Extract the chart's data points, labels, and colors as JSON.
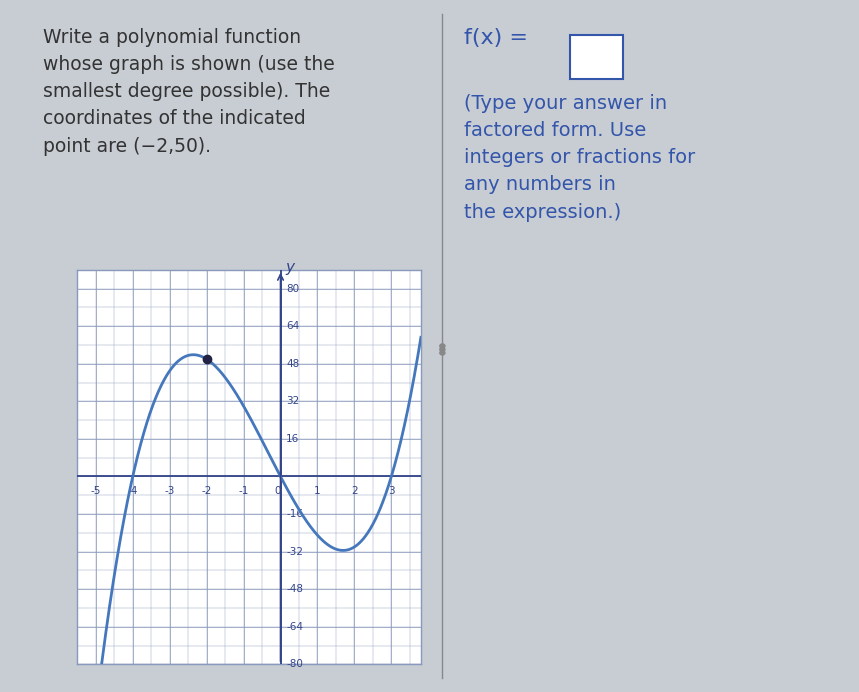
{
  "background_color": "#c8cdd4",
  "right_bg_color": "#d4d8de",
  "left_text_lines": [
    "Write a polynomial function",
    "whose graph is shown (use the",
    "smallest degree possible). The",
    "coordinates of the indicated",
    "point are (−2,50)."
  ],
  "right_text_line1": "f(x) =",
  "right_text_below": "(Type your answer in\nfactored form. Use\nintegers or fractions for\nany numbers in\nthe expression.)",
  "right_text_color": "#3355aa",
  "left_text_color": "#333333",
  "graph": {
    "xlim": [
      -5.5,
      3.8
    ],
    "ylim": [
      -80,
      88
    ],
    "xticks": [
      -5,
      -4,
      -3,
      -2,
      -1,
      1,
      2,
      3
    ],
    "yticks": [
      -80,
      -64,
      -48,
      -32,
      -16,
      16,
      32,
      48,
      64,
      80
    ],
    "curve_color": "#4477bb",
    "curve_linewidth": 2.0,
    "polynomial_a": 2.5,
    "indicated_point": [
      -2,
      50
    ],
    "grid_color": "#8899bb",
    "grid_linewidth": 0.5,
    "axis_color": "#334488",
    "box_color": "#8899bb"
  }
}
